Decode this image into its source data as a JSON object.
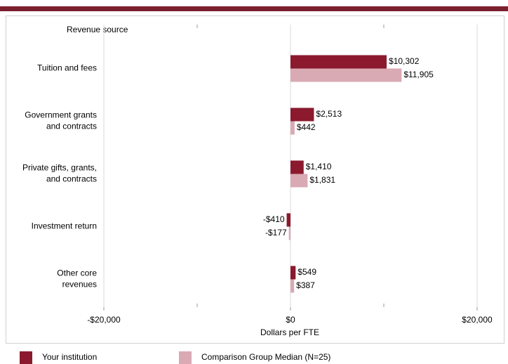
{
  "chart_data": {
    "type": "hbar",
    "y_axis_label": "Revenue source",
    "x_axis_label": "Dollars per FTE",
    "categories": [
      "Tuition and fees",
      "Government grants\nand contracts",
      "Private gifts, grants,\nand contracts",
      "Investment return",
      "Other core\nrevenues"
    ],
    "series": [
      {
        "name": "Your institution",
        "color": "#8b1a2e",
        "values": [
          10302,
          2513,
          1410,
          -410,
          549
        ],
        "value_labels": [
          "$10,302",
          "$2,513",
          "$1,410",
          "-$410",
          "$549"
        ]
      },
      {
        "name": "Comparison Group Median (N=25)",
        "color": "#d9aab4",
        "values": [
          11905,
          442,
          1831,
          -177,
          387
        ],
        "value_labels": [
          "$11,905",
          "$442",
          "$1,831",
          "-$177",
          "$387"
        ]
      }
    ],
    "xlim": [
      -20000,
      20000
    ],
    "xticks": [
      {
        "value": -20000,
        "label": "-$20,000"
      },
      {
        "value": 0,
        "label": "$0"
      },
      {
        "value": 20000,
        "label": "$20,000"
      }
    ],
    "xminorticks": [
      -10000,
      10000
    ],
    "grid": true
  }
}
